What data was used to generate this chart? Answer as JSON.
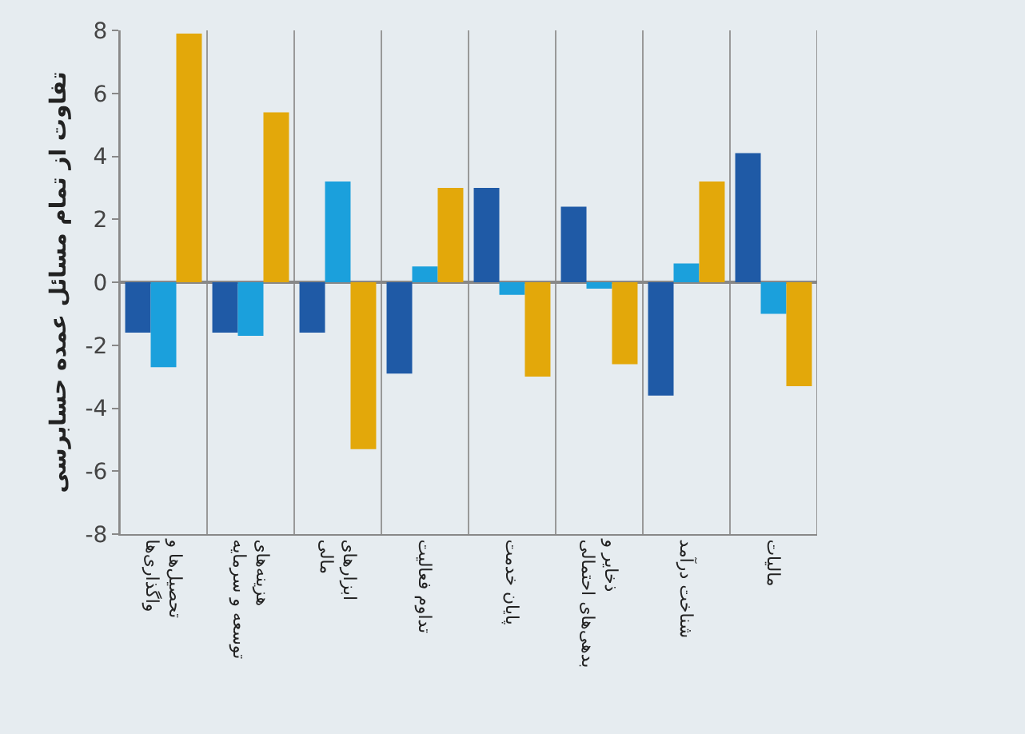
{
  "chart_data": {
    "type": "bar",
    "ylabel": "تفاوت از تمام مسائل عمده حسابرسی",
    "categories": [
      "تحصیل‌ها و واگذاری‌ها",
      "هزینه‌های توسعه و سرمایه",
      "ابزارهای مالی",
      "تداوم فعالیت",
      "پایان خدمت",
      "ذخایر و بدهی‌های احتمالی",
      "شناخت درآمد",
      "مالیات"
    ],
    "series": [
      {
        "color": "#1f5aa6",
        "values": [
          -1.6,
          -1.6,
          -1.6,
          -2.9,
          3.0,
          2.4,
          -3.6,
          4.1
        ]
      },
      {
        "color": "#1ba0dc",
        "values": [
          -2.7,
          -1.7,
          3.2,
          0.5,
          -0.4,
          -0.2,
          0.6,
          -1.0
        ]
      },
      {
        "color": "#e3a80a",
        "values": [
          7.9,
          5.4,
          -5.3,
          3.0,
          -3.0,
          -2.6,
          3.2,
          -3.3
        ]
      }
    ],
    "ylim": [
      -8,
      8
    ],
    "yticks": [
      -8,
      -6,
      -4,
      -2,
      0,
      2,
      4,
      6,
      8
    ],
    "grid": "x"
  }
}
